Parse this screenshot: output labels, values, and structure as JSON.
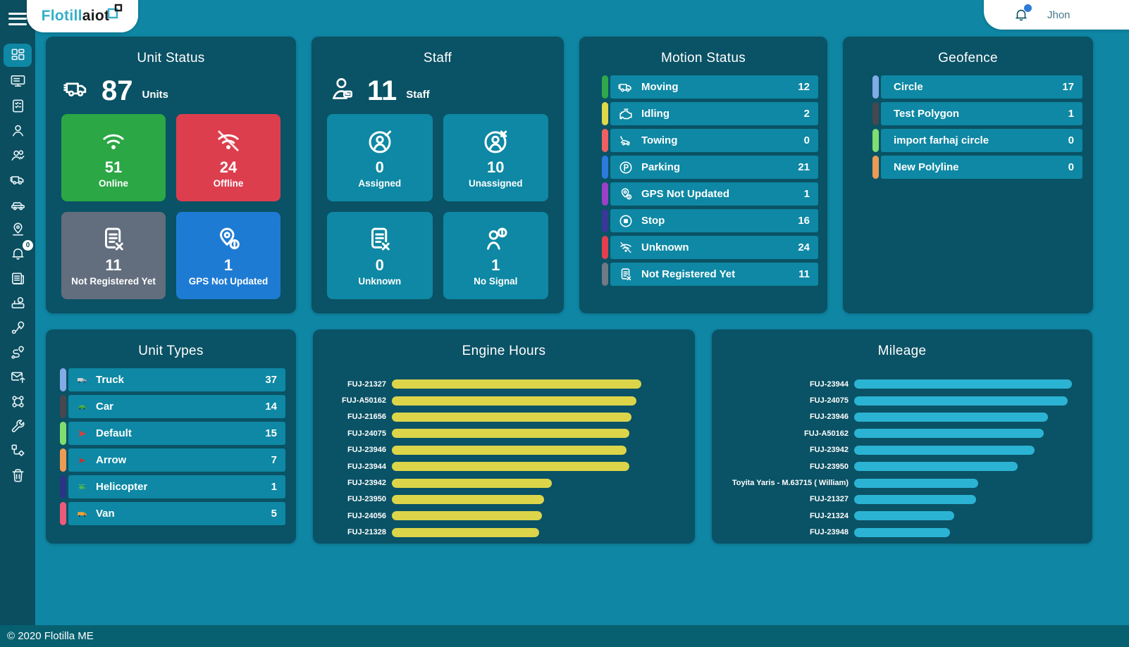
{
  "app": {
    "logo_primary": "Flotill",
    "logo_secondary": "aiot",
    "user_name": "Jhon",
    "footer_copyright": "© 2020 Flotilla ME"
  },
  "colors": {
    "background": "#0E86A4",
    "sidebar": "#0A4E60",
    "card": "#0A5265",
    "tile_teal": "#0E88A4",
    "footer": "#076070",
    "online_green": "#2BA745",
    "offline_red": "#DC3E4E",
    "not_registered_gray": "#626E7D",
    "gps_blue": "#1E7BD4",
    "engine_bar_yellow": "#DCD54A",
    "mileage_bar_cyan": "#2BB3D4"
  },
  "sidebar": {
    "notification_badge": "0",
    "items": [
      {
        "id": "dashboard",
        "icon": "grid-icon",
        "active": true
      },
      {
        "id": "monitoring",
        "icon": "monitor-icon"
      },
      {
        "id": "checklist",
        "icon": "checklist-icon"
      },
      {
        "id": "users",
        "icon": "user-icon"
      },
      {
        "id": "staff",
        "icon": "users-check-icon"
      },
      {
        "id": "trucks",
        "icon": "truck-icon"
      },
      {
        "id": "cars",
        "icon": "car-icon"
      },
      {
        "id": "tracking",
        "icon": "map-pin-icon"
      },
      {
        "id": "notifications",
        "icon": "bell-icon",
        "badge": "0"
      },
      {
        "id": "reports",
        "icon": "news-icon"
      },
      {
        "id": "console",
        "icon": "console-icon"
      },
      {
        "id": "routes",
        "icon": "route-pin-icon"
      },
      {
        "id": "trips",
        "icon": "trip-icon"
      },
      {
        "id": "messages",
        "icon": "envelope-send-icon"
      },
      {
        "id": "commands",
        "icon": "command-icon"
      },
      {
        "id": "maintenance",
        "icon": "wrench-icon"
      },
      {
        "id": "workflow",
        "icon": "workflow-icon"
      },
      {
        "id": "trash",
        "icon": "trash-icon"
      }
    ]
  },
  "cards": {
    "unit_status": {
      "title": "Unit Status",
      "total": "87",
      "total_label": "Units",
      "total_icon": "truck-icon",
      "tiles": [
        {
          "value": "51",
          "label": "Online",
          "color": "#2BA745",
          "icon": "wifi-icon"
        },
        {
          "value": "24",
          "label": "Offline",
          "color": "#DC3E4E",
          "icon": "wifi-off-icon"
        },
        {
          "value": "11",
          "label": "Not Registered Yet",
          "color": "#626E7D",
          "icon": "document-x-icon"
        },
        {
          "value": "1",
          "label": "GPS Not Updated",
          "color": "#1E7BD4",
          "icon": "pin-alert-icon"
        }
      ]
    },
    "staff": {
      "title": "Staff",
      "total": "11",
      "total_label": "Staff",
      "total_icon": "person-badge-icon",
      "tiles": [
        {
          "value": "0",
          "label": "Assigned",
          "icon": "person-check-icon"
        },
        {
          "value": "10",
          "label": "Unassigned",
          "icon": "person-x-icon"
        },
        {
          "value": "0",
          "label": "Unknown",
          "icon": "document-x-icon"
        },
        {
          "value": "1",
          "label": "No Signal",
          "icon": "person-alert-icon"
        }
      ]
    },
    "motion_status": {
      "title": "Motion Status",
      "rows": [
        {
          "label": "Moving",
          "value": "12",
          "accent": "#2EA84A",
          "icon": "truck-icon"
        },
        {
          "label": "Idling",
          "value": "2",
          "accent": "#DFD94A",
          "icon": "engine-icon"
        },
        {
          "label": "Towing",
          "value": "0",
          "accent": "#F06060",
          "icon": "tow-truck-icon"
        },
        {
          "label": "Parking",
          "value": "21",
          "accent": "#2A7BDC",
          "icon": "parking-icon"
        },
        {
          "label": "GPS Not Updated",
          "value": "1",
          "accent": "#9B41C8",
          "icon": "pin-alert-icon"
        },
        {
          "label": "Stop",
          "value": "16",
          "accent": "#383897",
          "icon": "stop-icon"
        },
        {
          "label": "Unknown",
          "value": "24",
          "accent": "#E2404E",
          "icon": "wifi-off-icon"
        },
        {
          "label": "Not Registered Yet",
          "value": "11",
          "accent": "#6E7A84",
          "icon": "document-x-icon"
        }
      ]
    },
    "geofence": {
      "title": "Geofence",
      "rows": [
        {
          "label": "Circle",
          "value": "17",
          "accent": "#82ABE8"
        },
        {
          "label": "Test Polygon",
          "value": "1",
          "accent": "#47474F"
        },
        {
          "label": "import farhaj circle",
          "value": "0",
          "accent": "#7FDE70"
        },
        {
          "label": "New Polyline",
          "value": "0",
          "accent": "#EC9B55"
        }
      ]
    },
    "unit_types": {
      "title": "Unit Types",
      "rows": [
        {
          "label": "Truck",
          "value": "37",
          "accent": "#82ABE8",
          "icon": "truck-thumb-icon"
        },
        {
          "label": "Car",
          "value": "14",
          "accent": "#47474F",
          "icon": "car-thumb-icon"
        },
        {
          "label": "Default",
          "value": "15",
          "accent": "#7FDE70",
          "icon": "dart-thumb-icon"
        },
        {
          "label": "Arrow",
          "value": "7",
          "accent": "#EC9B55",
          "icon": "arrow-thumb-icon"
        },
        {
          "label": "Helicopter",
          "value": "1",
          "accent": "#2B3588",
          "icon": "helicopter-thumb-icon"
        },
        {
          "label": "Van",
          "value": "5",
          "accent": "#EE5A7A",
          "icon": "van-thumb-icon"
        }
      ]
    }
  },
  "chart_data": [
    {
      "type": "bar",
      "orientation": "horizontal",
      "title": "Engine Hours",
      "categories": [
        "FUJ-21327",
        "FUJ-A50162",
        "FUJ-21656",
        "FUJ-24075",
        "FUJ-23946",
        "FUJ-23944",
        "FUJ-23942",
        "FUJ-23950",
        "FUJ-24056",
        "FUJ-21328"
      ],
      "values": [
        100,
        98,
        96,
        95,
        94,
        95,
        64,
        61,
        60,
        59
      ],
      "value_note": "relative bar length, % of longest bar (no numeric axis shown in UI)",
      "bar_color": "#DCD54A",
      "xlim": [
        0,
        114
      ],
      "grid": false,
      "legend": false
    },
    {
      "type": "bar",
      "orientation": "horizontal",
      "title": "Mileage",
      "categories": [
        "FUJ-23944",
        "FUJ-24075",
        "FUJ-23946",
        "FUJ-A50162",
        "FUJ-23942",
        "FUJ-23950",
        "Toyita Yaris - M.63715 ( William)",
        "FUJ-21327",
        "FUJ-21324",
        "FUJ-23948"
      ],
      "values": [
        100,
        98,
        89,
        87,
        83,
        75,
        57,
        56,
        46,
        44
      ],
      "value_note": "relative bar length, % of longest bar (no numeric axis shown in UI)",
      "bar_color": "#2BB3D4",
      "xlim": [
        0,
        101
      ],
      "grid": false,
      "legend": false
    }
  ]
}
